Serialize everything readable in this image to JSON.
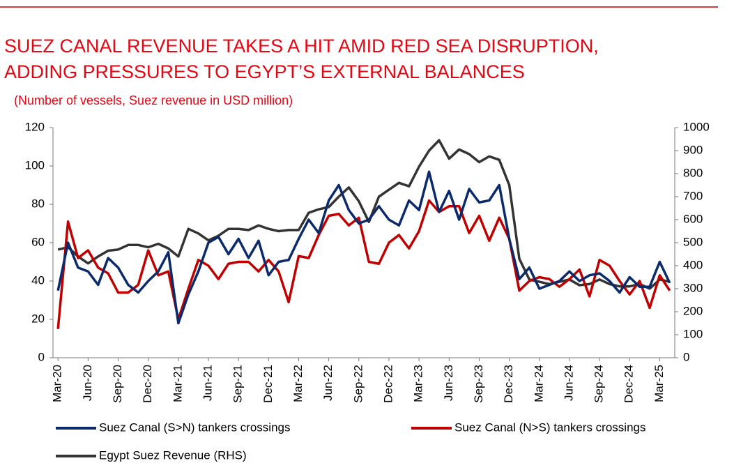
{
  "chart_data": {
    "type": "line",
    "title": "SUEZ CANAL REVENUE TAKES A HIT AMID RED SEA DISRUPTION,",
    "title_line2": "ADDING PRESSURES TO EGYPT’S EXTERNAL BALANCES",
    "subtitle": "(Number of vessels, Suez revenue in USD million)",
    "categories": [
      "Mar-20",
      null,
      null,
      "Jun-20",
      null,
      null,
      "Sep-20",
      null,
      null,
      "Dec-20",
      null,
      null,
      "Mar-21",
      null,
      null,
      "Jun-21",
      null,
      null,
      "Sep-21",
      null,
      null,
      "Dec-21",
      null,
      null,
      "Mar-22",
      null,
      null,
      "Jun-22",
      null,
      null,
      "Sep-22",
      null,
      null,
      "Dec-22",
      null,
      null,
      "Mar-23",
      null,
      null,
      "Jun-23",
      null,
      null,
      "Sep-23",
      null,
      null,
      "Dec-23",
      null,
      null,
      "Mar-24",
      null,
      null,
      "Jun-24",
      null,
      null,
      "Sep-24",
      null,
      null,
      "Dec-24",
      null,
      null,
      "Mar-25",
      null
    ],
    "series": [
      {
        "name": "Suez Canal (S>N) tankers crossings",
        "color": "#0b2a6b",
        "values": [
          35,
          60,
          47,
          45,
          38,
          52,
          47,
          38,
          34,
          40,
          45,
          55,
          18,
          33,
          45,
          60,
          63,
          54,
          62,
          52,
          61,
          43,
          50,
          51,
          62,
          72,
          65,
          82,
          90,
          77,
          70,
          72,
          79,
          72,
          69,
          82,
          77,
          97,
          76,
          87,
          72,
          88,
          81,
          82,
          90,
          62,
          41,
          47,
          36,
          38,
          40,
          45,
          40,
          43,
          44,
          40,
          34,
          42,
          37,
          37,
          50,
          39
        ]
      },
      {
        "name": "Suez Canal (N>S) tankers crossings",
        "color": "#c00000",
        "values": [
          15,
          71,
          52,
          56,
          47,
          44,
          34,
          34,
          38,
          56,
          43,
          45,
          20,
          36,
          51,
          48,
          41,
          49,
          50,
          50,
          45,
          51,
          45,
          29,
          53,
          52,
          64,
          74,
          75,
          69,
          73,
          50,
          49,
          60,
          64,
          57,
          66,
          82,
          76,
          79,
          79,
          65,
          74,
          61,
          73,
          62,
          35,
          40,
          42,
          41,
          37,
          41,
          46,
          32,
          51,
          48,
          40,
          33,
          40,
          26,
          43,
          35
        ]
      },
      {
        "name": "Egypt Suez Revenue (RHS)",
        "color": "#333333",
        "axis": "y2",
        "values": [
          470,
          480,
          440,
          410,
          440,
          465,
          470,
          490,
          490,
          480,
          495,
          475,
          440,
          560,
          540,
          510,
          530,
          560,
          560,
          555,
          575,
          560,
          550,
          555,
          555,
          630,
          645,
          655,
          700,
          740,
          680,
          590,
          700,
          730,
          760,
          745,
          830,
          900,
          945,
          865,
          905,
          885,
          850,
          875,
          860,
          750,
          430,
          340,
          330,
          320,
          330,
          340,
          315,
          320,
          340,
          320,
          310,
          310,
          320,
          300,
          340,
          330
        ]
      }
    ],
    "ylim": [
      0,
      120
    ],
    "yticks": [
      0,
      20,
      40,
      60,
      80,
      100,
      120
    ],
    "y2lim": [
      0,
      1000
    ],
    "y2ticks": [
      0,
      100,
      200,
      300,
      400,
      500,
      600,
      700,
      800,
      900,
      1000
    ]
  }
}
